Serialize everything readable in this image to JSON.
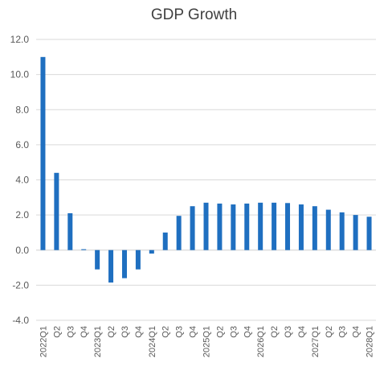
{
  "chart_data": {
    "type": "bar",
    "title": "GDP Growth",
    "xlabel": "",
    "ylabel": "",
    "ylim": [
      -4.0,
      12.0
    ],
    "yticks": [
      "12.0",
      "10.0",
      "8.0",
      "6.0",
      "4.0",
      "2.0",
      "0.0",
      "-2.0",
      "-4.0"
    ],
    "ytick_values": [
      12,
      10,
      8,
      6,
      4,
      2,
      0,
      -2,
      -4
    ],
    "categories": [
      "2022Q1",
      "Q2",
      "Q3",
      "Q4",
      "2023Q1",
      "Q2",
      "Q3",
      "Q4",
      "2024Q1",
      "Q2",
      "Q3",
      "Q4",
      "2025Q1",
      "Q2",
      "Q3",
      "Q4",
      "2026Q1",
      "Q2",
      "Q3",
      "Q4",
      "2027Q1",
      "Q2",
      "Q3",
      "Q4",
      "2028Q1"
    ],
    "series": [
      {
        "color": "#1f6fc0",
        "values": [
          11.0,
          4.4,
          2.1,
          0.05,
          -1.1,
          -1.85,
          -1.6,
          -1.1,
          -0.2,
          1.0,
          1.95,
          2.5,
          2.7,
          2.65,
          2.6,
          2.65,
          2.7,
          2.7,
          2.68,
          2.6,
          2.5,
          2.3,
          2.15,
          2.0,
          1.9
        ]
      }
    ],
    "grid": true,
    "gridline_color": "#d9d9d9",
    "legend": "none"
  }
}
